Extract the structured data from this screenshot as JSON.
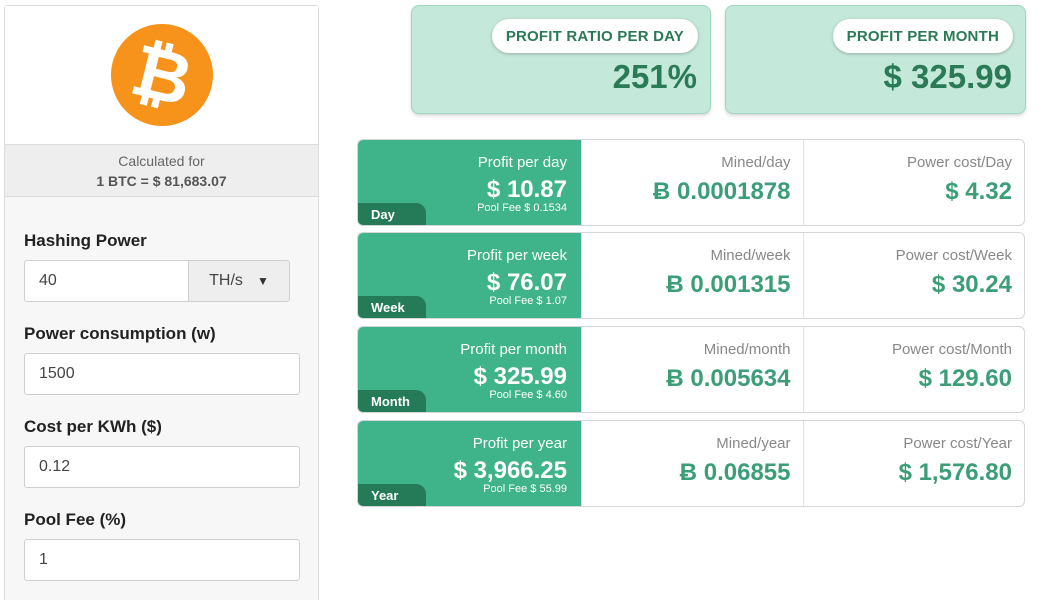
{
  "sidebar": {
    "calculated_for": "Calculated for",
    "rate": "1 BTC = $ 81,683.07",
    "logo_symbol": "₿",
    "fields": {
      "hashing_label": "Hashing Power",
      "hashing_value": "40",
      "hashing_unit": "TH/s",
      "power_label": "Power consumption (w)",
      "power_value": "1500",
      "cost_label": "Cost per KWh ($)",
      "cost_value": "0.12",
      "fee_label": "Pool Fee (%)",
      "fee_value": "1"
    }
  },
  "summary": {
    "ratio_label": "PROFIT RATIO PER DAY",
    "ratio_value": "251%",
    "month_label": "PROFIT PER MONTH",
    "month_value": "$ 325.99"
  },
  "rows": [
    {
      "tag": "Day",
      "profit_label": "Profit per day",
      "profit_value": "$ 10.87",
      "fee": "Pool Fee $ 0.1534",
      "mined_label": "Mined/day",
      "mined_value": "Ƀ 0.0001878",
      "power_label": "Power cost/Day",
      "power_value": "$ 4.32"
    },
    {
      "tag": "Week",
      "profit_label": "Profit per week",
      "profit_value": "$ 76.07",
      "fee": "Pool Fee $ 1.07",
      "mined_label": "Mined/week",
      "mined_value": "Ƀ 0.001315",
      "power_label": "Power cost/Week",
      "power_value": "$ 30.24"
    },
    {
      "tag": "Month",
      "profit_label": "Profit per month",
      "profit_value": "$ 325.99",
      "fee": "Pool Fee $ 4.60",
      "mined_label": "Mined/month",
      "mined_value": "Ƀ 0.005634",
      "power_label": "Power cost/Month",
      "power_value": "$ 129.60"
    },
    {
      "tag": "Year",
      "profit_label": "Profit per year",
      "profit_value": "$ 3,966.25",
      "fee": "Pool Fee $ 55.99",
      "mined_label": "Mined/year",
      "mined_value": "Ƀ 0.06855",
      "power_label": "Power cost/Year",
      "power_value": "$ 1,576.80"
    }
  ],
  "colors": {
    "btc_orange": "#f7931a",
    "profit_green": "#3fb389",
    "tag_green": "#257b58",
    "card_bg": "#c4e8d9"
  }
}
